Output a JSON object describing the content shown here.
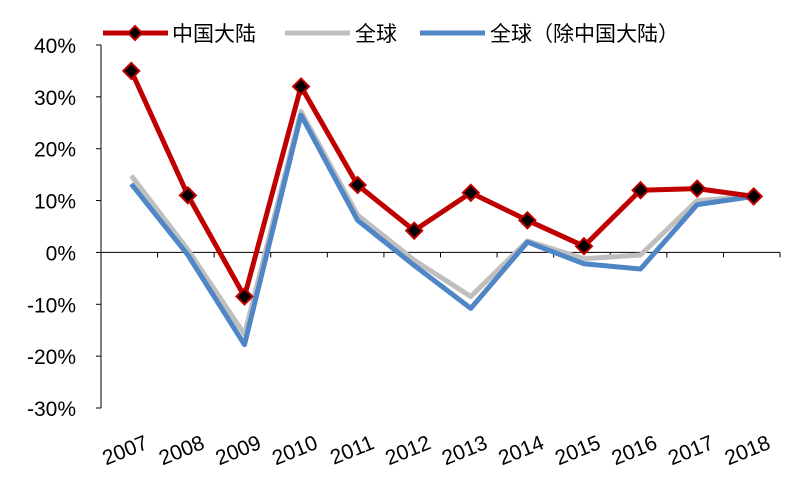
{
  "chart_data": {
    "type": "line",
    "categories": [
      "2007",
      "2008",
      "2009",
      "2010",
      "2011",
      "2012",
      "2013",
      "2014",
      "2015",
      "2016",
      "2017",
      "2018"
    ],
    "ylim": [
      -30,
      40
    ],
    "yticks": [
      "40%",
      "30%",
      "20%",
      "10%",
      "0%",
      "-10%",
      "-20%",
      "-30%"
    ],
    "grid": false,
    "legend_position": "top",
    "series": [
      {
        "name": "中国大陆",
        "color": "#c00000",
        "marker": "diamond",
        "values": [
          35,
          11,
          -8.5,
          32,
          13,
          4.2,
          11.5,
          6.2,
          1.2,
          12,
          12.3,
          10.8
        ]
      },
      {
        "name": "全球",
        "color": "#bfbfbf",
        "marker": "none",
        "values": [
          14.8,
          0.5,
          -15.8,
          27.2,
          7.2,
          -1.5,
          -8.5,
          2.2,
          -1.2,
          -0.5,
          10,
          10.8
        ]
      },
      {
        "name": "全球（除中国大陆）",
        "color": "#4f86c6",
        "marker": "none",
        "values": [
          13.2,
          -0.5,
          -17.8,
          26.5,
          6.2,
          -2.5,
          -10.8,
          2.0,
          -2.2,
          -3.2,
          9.2,
          10.8
        ]
      }
    ]
  }
}
